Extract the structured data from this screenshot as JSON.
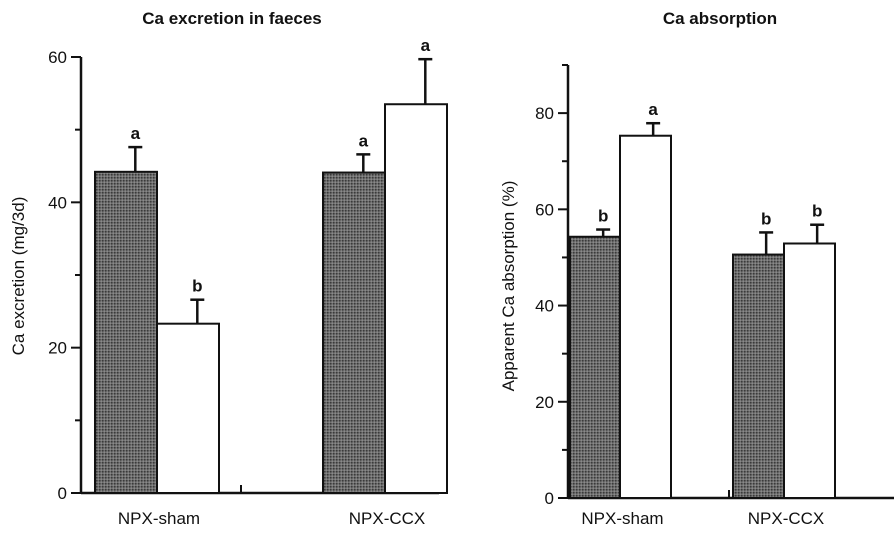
{
  "chart_data": [
    {
      "type": "bar",
      "title": "Ca excretion in faeces",
      "xlabel": "",
      "ylabel": "Ca excretion (mg/3d)",
      "ylim": [
        0,
        60
      ],
      "yticks": [
        "0",
        "20",
        "40",
        "60"
      ],
      "categories": [
        "NPX-sham",
        "NPX-CCX"
      ],
      "series": [
        {
          "values": [
            44.2,
            44.1
          ],
          "errors": [
            3.4,
            2.5
          ],
          "letters": [
            "a",
            "a"
          ],
          "fill": "#5a5a5a"
        },
        {
          "values": [
            23.3,
            53.5
          ],
          "errors": [
            3.3,
            6.2
          ],
          "letters": [
            "b",
            "a"
          ],
          "fill": "#ffffff"
        }
      ],
      "grid": false
    },
    {
      "type": "bar",
      "title": "Ca absorption",
      "xlabel": "",
      "ylabel": "Apparent Ca absorption (%)",
      "ylim": [
        0,
        90
      ],
      "yticks": [
        "0",
        "20",
        "40",
        "60",
        "80"
      ],
      "categories": [
        "NPX-sham",
        "NPX-CCX"
      ],
      "series": [
        {
          "values": [
            54.3,
            50.6
          ],
          "errors": [
            1.5,
            4.6
          ],
          "letters": [
            "b",
            "b"
          ],
          "fill": "#5a5a5a"
        },
        {
          "values": [
            75.3,
            52.9
          ],
          "errors": [
            2.6,
            3.9
          ],
          "letters": [
            "a",
            "b"
          ],
          "fill": "#ffffff"
        }
      ],
      "grid": false
    }
  ]
}
